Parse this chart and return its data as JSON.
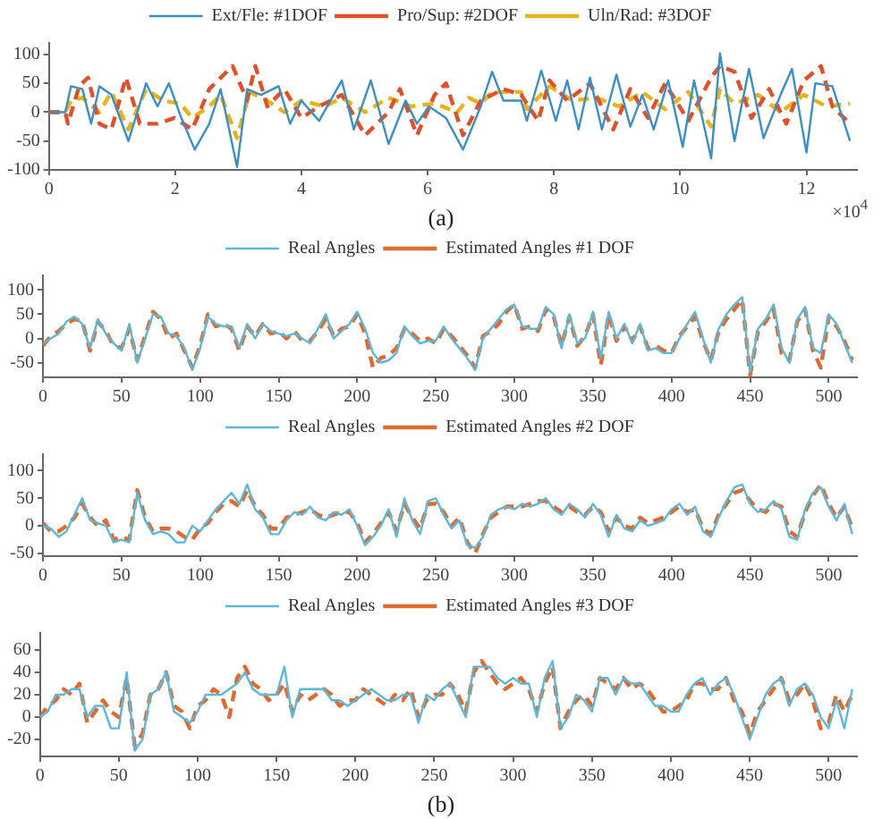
{
  "chart_data": [
    {
      "type": "line",
      "xlim": [
        0,
        12.8
      ],
      "xticks": [
        0,
        2,
        4,
        6,
        8,
        10,
        12
      ],
      "ylim": [
        -100,
        120
      ],
      "yticks": [
        -100,
        -50,
        0,
        50,
        100
      ],
      "grid": false,
      "legend": "top",
      "marker": "none",
      "annotations": [
        "(a)",
        "×10$^{4}$"
      ],
      "series": [
        {
          "name": "Ext/Fle: #1DOF",
          "color": "#3a8fc4",
          "line_style": "solid",
          "x": [
            0,
            0.26,
            0.35,
            0.53,
            0.67,
            0.8,
            0.99,
            1.26,
            1.54,
            1.72,
            1.9,
            2.08,
            2.31,
            2.54,
            2.72,
            2.98,
            3.14,
            3.36,
            3.64,
            3.82,
            4,
            4.28,
            4.64,
            4.83,
            5.1,
            5.38,
            5.65,
            5.83,
            6.02,
            6.29,
            6.56,
            6.84,
            7.02,
            7.2,
            7.48,
            7.57,
            7.8,
            8.03,
            8.21,
            8.39,
            8.57,
            8.76,
            8.99,
            9.21,
            9.4,
            9.58,
            9.81,
            10.04,
            10.22,
            10.49,
            10.63,
            10.86,
            11.09,
            11.32,
            11.59,
            11.77,
            12,
            12.14,
            12.41,
            12.69
          ],
          "values": [
            0,
            0,
            45,
            40,
            -20,
            45,
            30,
            -50,
            50,
            10,
            50,
            -5,
            -65,
            -20,
            40,
            -95,
            40,
            30,
            45,
            -20,
            20,
            -15,
            55,
            -30,
            55,
            -55,
            20,
            -20,
            10,
            -10,
            -65,
            10,
            70,
            20,
            20,
            -15,
            72,
            -15,
            55,
            -30,
            60,
            -30,
            65,
            -25,
            30,
            -30,
            55,
            -60,
            55,
            -80,
            102,
            -50,
            75,
            -45,
            30,
            75,
            -70,
            50,
            45,
            -50
          ]
        },
        {
          "name": "Pro/Sup: #2DOF",
          "color": "#e0502b",
          "line_style": "dashed",
          "x": [
            0,
            0.26,
            0.3,
            0.48,
            0.62,
            0.8,
            0.99,
            1.22,
            1.44,
            1.72,
            1.99,
            2.27,
            2.54,
            2.91,
            3.14,
            3.27,
            3.46,
            3.73,
            4,
            4.28,
            4.64,
            5.01,
            5.38,
            5.56,
            5.83,
            6.11,
            6.29,
            6.56,
            6.84,
            7.2,
            7.48,
            7.75,
            7.93,
            8.21,
            8.57,
            8.94,
            9.21,
            9.49,
            9.76,
            10.13,
            10.49,
            10.63,
            10.86,
            11.13,
            11.41,
            11.68,
            11.96,
            12.23,
            12.41,
            12.69
          ],
          "values": [
            0,
            0,
            -20,
            45,
            60,
            -20,
            -30,
            60,
            -20,
            -20,
            -10,
            -30,
            40,
            80,
            20,
            80,
            10,
            40,
            -10,
            10,
            30,
            -40,
            0,
            40,
            -40,
            30,
            50,
            -40,
            20,
            40,
            30,
            -15,
            55,
            20,
            50,
            -30,
            40,
            -10,
            50,
            -15,
            60,
            80,
            70,
            -10,
            40,
            -20,
            55,
            80,
            10,
            -20
          ]
        },
        {
          "name": "Uln/Rad: #3DOF",
          "color": "#e8b21a",
          "line_style": "dashed",
          "x": [
            0,
            0.26,
            0.35,
            0.53,
            0.8,
            0.99,
            1.26,
            1.54,
            1.81,
            2.08,
            2.27,
            2.54,
            2.72,
            2.98,
            3.18,
            3.46,
            3.73,
            4,
            4.37,
            4.64,
            5.01,
            5.38,
            5.74,
            6.11,
            6.47,
            6.65,
            6.84,
            7.02,
            7.48,
            7.57,
            7.93,
            8.3,
            8.67,
            9.03,
            9.4,
            9.76,
            10.13,
            10.49,
            10.63,
            10.86,
            11.23,
            11.59,
            11.96,
            12.32,
            12.69
          ],
          "values": [
            0,
            0,
            20,
            25,
            0,
            35,
            -30,
            40,
            20,
            15,
            -10,
            10,
            30,
            -45,
            35,
            20,
            0,
            20,
            10,
            25,
            0,
            25,
            10,
            15,
            0,
            25,
            15,
            35,
            35,
            5,
            45,
            20,
            25,
            10,
            35,
            5,
            35,
            -25,
            40,
            15,
            30,
            0,
            30,
            10,
            15
          ]
        }
      ]
    },
    {
      "type": "line",
      "xlim": [
        0,
        518
      ],
      "xticks": [
        0,
        50,
        100,
        150,
        200,
        250,
        300,
        350,
        400,
        450,
        500
      ],
      "ylim": [
        -80,
        130
      ],
      "yticks": [
        -50,
        0,
        50,
        100
      ],
      "grid": false,
      "legend": "top",
      "marker": "none",
      "x": [
        0,
        5,
        10,
        15,
        20,
        25,
        30,
        35,
        40,
        45,
        50,
        55,
        60,
        65,
        70,
        75,
        80,
        85,
        90,
        95,
        100,
        105,
        110,
        115,
        120,
        125,
        130,
        135,
        140,
        145,
        150,
        155,
        160,
        165,
        170,
        175,
        180,
        185,
        190,
        195,
        200,
        205,
        210,
        215,
        220,
        225,
        230,
        235,
        240,
        245,
        250,
        255,
        260,
        265,
        270,
        275,
        280,
        285,
        290,
        295,
        300,
        305,
        310,
        315,
        320,
        325,
        330,
        335,
        340,
        345,
        350,
        355,
        360,
        365,
        370,
        375,
        380,
        385,
        390,
        395,
        400,
        405,
        410,
        415,
        420,
        425,
        430,
        435,
        440,
        445,
        450,
        455,
        460,
        465,
        470,
        475,
        480,
        485,
        490,
        495,
        500,
        505,
        510,
        515
      ],
      "series": [
        {
          "name": "Real Angles",
          "color": "#5bb8d8",
          "line_style": "solid",
          "values": [
            -10,
            0,
            10,
            35,
            45,
            30,
            -20,
            40,
            10,
            -10,
            -25,
            30,
            -50,
            0,
            50,
            45,
            10,
            5,
            -20,
            -65,
            -20,
            45,
            30,
            25,
            25,
            -20,
            30,
            0,
            30,
            15,
            10,
            5,
            10,
            0,
            -10,
            20,
            50,
            0,
            15,
            30,
            55,
            20,
            -30,
            -50,
            -45,
            -30,
            25,
            5,
            -10,
            -5,
            -5,
            25,
            0,
            -20,
            -40,
            -65,
            0,
            20,
            40,
            60,
            70,
            25,
            20,
            20,
            65,
            50,
            -20,
            50,
            -10,
            0,
            55,
            -40,
            55,
            0,
            30,
            -10,
            30,
            -25,
            -20,
            -30,
            -30,
            0,
            30,
            55,
            0,
            -50,
            20,
            50,
            70,
            85,
            -70,
            20,
            40,
            70,
            -20,
            -50,
            40,
            65,
            -20,
            -30,
            50,
            30,
            -10,
            -50
          ]
        },
        {
          "name": "Estimated Angles #1 DOF",
          "color": "#e06a30",
          "line_style": "dashed",
          "values": [
            -15,
            5,
            15,
            30,
            40,
            35,
            -25,
            35,
            15,
            -15,
            -20,
            20,
            -45,
            5,
            55,
            40,
            0,
            10,
            -25,
            -60,
            -15,
            50,
            25,
            30,
            20,
            -25,
            25,
            5,
            30,
            10,
            15,
            0,
            15,
            -5,
            -5,
            15,
            40,
            5,
            20,
            25,
            50,
            10,
            -60,
            -40,
            -35,
            -20,
            20,
            10,
            -5,
            0,
            -10,
            20,
            5,
            -15,
            -35,
            -60,
            5,
            15,
            30,
            55,
            70,
            20,
            25,
            15,
            60,
            45,
            -15,
            45,
            -15,
            5,
            50,
            -55,
            50,
            -5,
            25,
            -5,
            25,
            -20,
            -15,
            -25,
            -30,
            5,
            25,
            45,
            -5,
            -45,
            15,
            40,
            60,
            80,
            -75,
            15,
            35,
            60,
            -30,
            -45,
            35,
            60,
            -25,
            -60,
            45,
            25,
            -5,
            -45
          ]
        }
      ]
    },
    {
      "type": "line",
      "xlim": [
        0,
        518
      ],
      "xticks": [
        0,
        50,
        100,
        150,
        200,
        250,
        300,
        350,
        400,
        450,
        500
      ],
      "ylim": [
        -55,
        130
      ],
      "yticks": [
        -50,
        0,
        50,
        100
      ],
      "grid": false,
      "legend": "top",
      "marker": "none",
      "x": [
        0,
        5,
        10,
        15,
        20,
        25,
        30,
        35,
        40,
        45,
        50,
        55,
        60,
        65,
        70,
        75,
        80,
        85,
        90,
        95,
        100,
        105,
        110,
        115,
        120,
        125,
        130,
        135,
        140,
        145,
        150,
        155,
        160,
        165,
        170,
        175,
        180,
        185,
        190,
        195,
        200,
        205,
        210,
        215,
        220,
        225,
        230,
        235,
        240,
        245,
        250,
        255,
        260,
        265,
        270,
        275,
        280,
        285,
        290,
        295,
        300,
        305,
        310,
        315,
        320,
        325,
        330,
        335,
        340,
        345,
        350,
        355,
        360,
        365,
        370,
        375,
        380,
        385,
        390,
        395,
        400,
        405,
        410,
        415,
        420,
        425,
        430,
        435,
        440,
        445,
        450,
        455,
        460,
        465,
        470,
        475,
        480,
        485,
        490,
        495,
        500,
        505,
        510,
        515
      ],
      "series": [
        {
          "name": "Real Angles",
          "color": "#5bb8d8",
          "line_style": "solid",
          "values": [
            0,
            -5,
            -20,
            -10,
            20,
            50,
            10,
            5,
            0,
            -30,
            -25,
            -30,
            60,
            10,
            -15,
            -10,
            -15,
            -30,
            -30,
            0,
            -10,
            10,
            30,
            45,
            60,
            40,
            75,
            30,
            15,
            -15,
            -15,
            10,
            25,
            20,
            35,
            15,
            10,
            25,
            20,
            30,
            0,
            -35,
            -20,
            0,
            30,
            -20,
            50,
            10,
            -15,
            45,
            50,
            20,
            -5,
            10,
            -35,
            -40,
            -20,
            20,
            30,
            35,
            30,
            40,
            35,
            40,
            50,
            30,
            20,
            40,
            30,
            15,
            40,
            20,
            -20,
            20,
            -5,
            -10,
            10,
            0,
            5,
            10,
            30,
            40,
            20,
            35,
            -10,
            -20,
            15,
            45,
            70,
            75,
            40,
            25,
            30,
            45,
            30,
            -20,
            -25,
            30,
            60,
            70,
            35,
            10,
            40,
            -15
          ]
        },
        {
          "name": "Estimated Angles #2 DOF",
          "color": "#e06a30",
          "line_style": "dashed",
          "values": [
            5,
            -10,
            -10,
            0,
            15,
            40,
            15,
            0,
            10,
            -25,
            -20,
            -25,
            65,
            15,
            -10,
            -5,
            -5,
            -10,
            -20,
            -25,
            -5,
            5,
            25,
            40,
            45,
            35,
            65,
            35,
            20,
            -5,
            -5,
            15,
            20,
            25,
            30,
            20,
            15,
            20,
            25,
            25,
            5,
            -30,
            -15,
            5,
            25,
            -10,
            40,
            15,
            -5,
            40,
            40,
            25,
            0,
            15,
            -30,
            -50,
            -15,
            15,
            25,
            35,
            35,
            35,
            40,
            45,
            45,
            35,
            25,
            35,
            25,
            20,
            35,
            25,
            -10,
            15,
            0,
            -5,
            15,
            5,
            10,
            15,
            25,
            35,
            25,
            30,
            -5,
            -15,
            20,
            40,
            60,
            65,
            45,
            30,
            25,
            40,
            35,
            -10,
            -20,
            25,
            55,
            75,
            40,
            15,
            35,
            -5
          ]
        }
      ]
    },
    {
      "type": "line",
      "xlim": [
        0,
        518
      ],
      "xticks": [
        0,
        50,
        100,
        150,
        200,
        250,
        300,
        350,
        400,
        450,
        500
      ],
      "ylim": [
        -35,
        75
      ],
      "yticks": [
        -20,
        0,
        20,
        40,
        60
      ],
      "grid": false,
      "legend": "top",
      "marker": "none",
      "annotations": [
        "(b)"
      ],
      "x": [
        0,
        5,
        10,
        15,
        20,
        25,
        30,
        35,
        40,
        45,
        50,
        55,
        60,
        65,
        70,
        75,
        80,
        85,
        90,
        95,
        100,
        105,
        110,
        115,
        120,
        125,
        130,
        135,
        140,
        145,
        150,
        155,
        160,
        165,
        170,
        175,
        180,
        185,
        190,
        195,
        200,
        205,
        210,
        215,
        220,
        225,
        230,
        235,
        240,
        245,
        250,
        255,
        260,
        265,
        270,
        275,
        280,
        285,
        290,
        295,
        300,
        305,
        310,
        315,
        320,
        325,
        330,
        335,
        340,
        345,
        350,
        355,
        360,
        365,
        370,
        375,
        380,
        385,
        390,
        395,
        400,
        405,
        410,
        415,
        420,
        425,
        430,
        435,
        440,
        445,
        450,
        455,
        460,
        465,
        470,
        475,
        480,
        485,
        490,
        495,
        500,
        505,
        510,
        515
      ],
      "series": [
        {
          "name": "Real Angles",
          "color": "#5bb8d8",
          "line_style": "solid",
          "values": [
            0,
            5,
            20,
            20,
            25,
            25,
            0,
            10,
            10,
            -10,
            -10,
            40,
            -30,
            -20,
            20,
            25,
            40,
            5,
            0,
            -5,
            5,
            20,
            20,
            20,
            25,
            30,
            40,
            25,
            20,
            20,
            20,
            45,
            0,
            25,
            25,
            25,
            25,
            15,
            15,
            10,
            15,
            20,
            25,
            20,
            15,
            15,
            20,
            20,
            -5,
            20,
            15,
            25,
            30,
            15,
            0,
            45,
            45,
            45,
            35,
            30,
            35,
            30,
            30,
            0,
            35,
            50,
            -10,
            0,
            20,
            15,
            5,
            35,
            35,
            20,
            35,
            30,
            30,
            20,
            10,
            10,
            5,
            5,
            20,
            30,
            35,
            20,
            30,
            35,
            20,
            0,
            -20,
            0,
            20,
            30,
            35,
            10,
            25,
            30,
            20,
            0,
            -10,
            15,
            -10,
            25
          ]
        },
        {
          "name": "Estimated Angles #3 DOF",
          "color": "#e06a30",
          "line_style": "dashed",
          "values": [
            0,
            10,
            15,
            25,
            20,
            30,
            -5,
            5,
            15,
            5,
            0,
            35,
            -25,
            -15,
            20,
            25,
            40,
            10,
            5,
            -10,
            10,
            15,
            25,
            20,
            0,
            35,
            45,
            30,
            25,
            15,
            20,
            30,
            5,
            20,
            15,
            20,
            25,
            20,
            10,
            15,
            15,
            25,
            20,
            15,
            10,
            20,
            15,
            25,
            0,
            15,
            20,
            20,
            30,
            20,
            5,
            40,
            50,
            40,
            30,
            25,
            30,
            35,
            25,
            5,
            30,
            45,
            -10,
            5,
            15,
            20,
            10,
            35,
            30,
            25,
            35,
            25,
            30,
            25,
            15,
            5,
            5,
            10,
            15,
            30,
            30,
            25,
            25,
            35,
            15,
            5,
            -15,
            5,
            15,
            25,
            35,
            15,
            20,
            30,
            15,
            -10,
            -5,
            20,
            5,
            20
          ]
        }
      ]
    }
  ]
}
